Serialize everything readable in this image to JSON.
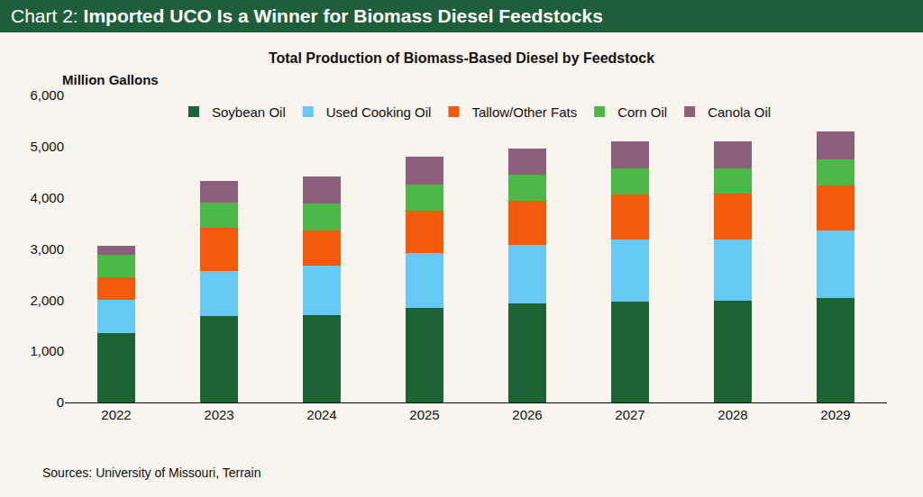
{
  "chart_data": {
    "type": "bar",
    "title": "Chart 2: Imported UCO Is a Winner for Biomass Diesel Feedstocks",
    "subtitle": "Total Production of Biomass-Based Diesel by Feedstock",
    "y_label": "Million Gallons",
    "source": "Sources: University of Missouri, Terrain",
    "categories": [
      "2022",
      "2023",
      "2024",
      "2025",
      "2026",
      "2027",
      "2028",
      "2029"
    ],
    "stacked": true,
    "grid": false,
    "legend": "top",
    "ylim": [
      0,
      6000
    ],
    "yticks": [
      0,
      {
        "value": 1000,
        "label": "1,000"
      },
      {
        "value": 2000,
        "label": "2,000"
      },
      {
        "value": 3000,
        "label": "3,000"
      },
      {
        "value": 4000,
        "label": "4,000"
      },
      {
        "value": 5000,
        "label": "5,000"
      },
      {
        "value": 6000,
        "label": "6,000"
      }
    ],
    "series": [
      {
        "name": "Soybean Oil",
        "color": "#1c6434",
        "values": [
          1350,
          1690,
          1710,
          1850,
          1940,
          1970,
          1990,
          2040
        ]
      },
      {
        "name": "Used Cooking Oil",
        "color": "#66c8f5",
        "values": [
          650,
          880,
          970,
          1070,
          1140,
          1220,
          1200,
          1320
        ]
      },
      {
        "name": "Tallow/Other Fats",
        "color": "#f25a0c",
        "values": [
          450,
          850,
          680,
          830,
          860,
          880,
          890,
          880
        ]
      },
      {
        "name": "Corn Oil",
        "color": "#4cb848",
        "values": [
          430,
          490,
          530,
          510,
          510,
          510,
          500,
          510
        ]
      },
      {
        "name": "Canola Oil",
        "color": "#8e5f7a",
        "values": [
          190,
          420,
          530,
          550,
          510,
          530,
          520,
          550
        ]
      }
    ]
  }
}
